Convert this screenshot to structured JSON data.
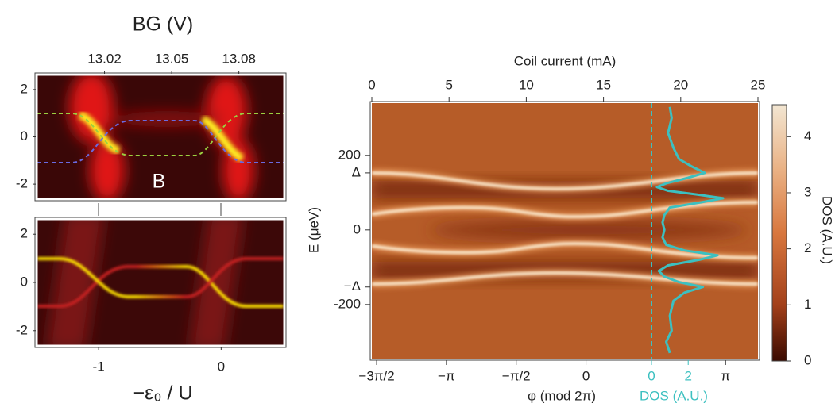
{
  "chart_data": [
    {
      "type": "heatmap",
      "x2label": "BG (V)",
      "annotation": "B",
      "x2lim": [
        12.99,
        13.1
      ],
      "x2ticks": [
        13.02,
        13.05,
        13.08
      ],
      "ylim": [
        -2.6,
        2.6
      ],
      "yticks": [
        -2,
        0,
        2
      ]
    },
    {
      "type": "heatmap",
      "xlabel": "−ε₀ / U",
      "xlim": [
        -1.5,
        0.51
      ],
      "xticks": [
        -1,
        0
      ],
      "ylim": [
        -2.6,
        2.6
      ],
      "yticks": [
        -2,
        0,
        2
      ]
    },
    {
      "type": "heatmap",
      "x2label": "Coil current (mA)",
      "x2lim": [
        0,
        25
      ],
      "x2ticks": [
        0,
        5,
        10,
        15,
        20,
        25
      ],
      "xlabel": "φ (mod 2π)",
      "xlim": [
        -4.82,
        3.87
      ],
      "xticks": [
        {
          "value": -4.712,
          "label": "−3π/2"
        },
        {
          "value": -3.1416,
          "label": "−π"
        },
        {
          "value": -1.5708,
          "label": "−π/2"
        },
        {
          "value": 0,
          "label": "0"
        },
        {
          "value": 3.1416,
          "label": "π"
        }
      ],
      "ylabel": "E (μeV)",
      "ylim": [
        -345,
        340
      ],
      "yticks": [
        200,
        {
          "value": 153,
          "label": "Δ"
        },
        0,
        {
          "value": -153,
          "label": "−Δ"
        },
        -200
      ],
      "colorbar": {
        "label": "DOS (A.U.)",
        "lim": [
          0,
          4.57
        ],
        "ticks": [
          0,
          1,
          2,
          3,
          4
        ]
      },
      "dos": {
        "label": "DOS (A.U.)",
        "color": "#3cc0c0",
        "xlim": [
          0,
          5.8
        ],
        "xticks": [
          0,
          2
        ],
        "E": [
          330,
          300,
          260,
          220,
          190,
          170,
          153,
          140,
          125,
          115,
          105,
          95,
          85,
          75,
          60,
          40,
          20,
          0,
          -20,
          -40,
          -55,
          -68,
          -80,
          -95,
          -110,
          -125,
          -140,
          -153,
          -168,
          -190,
          -230,
          -270,
          -300,
          -330
        ],
        "values": [
          1.0,
          1.1,
          0.9,
          1.2,
          1.5,
          2.2,
          2.9,
          2.0,
          0.8,
          0.3,
          0.9,
          2.5,
          3.9,
          2.8,
          1.0,
          0.7,
          0.6,
          0.7,
          0.6,
          0.8,
          1.8,
          3.6,
          2.6,
          0.9,
          0.4,
          0.7,
          1.5,
          2.8,
          1.8,
          1.2,
          1.0,
          1.1,
          0.8,
          1.0
        ]
      }
    }
  ]
}
